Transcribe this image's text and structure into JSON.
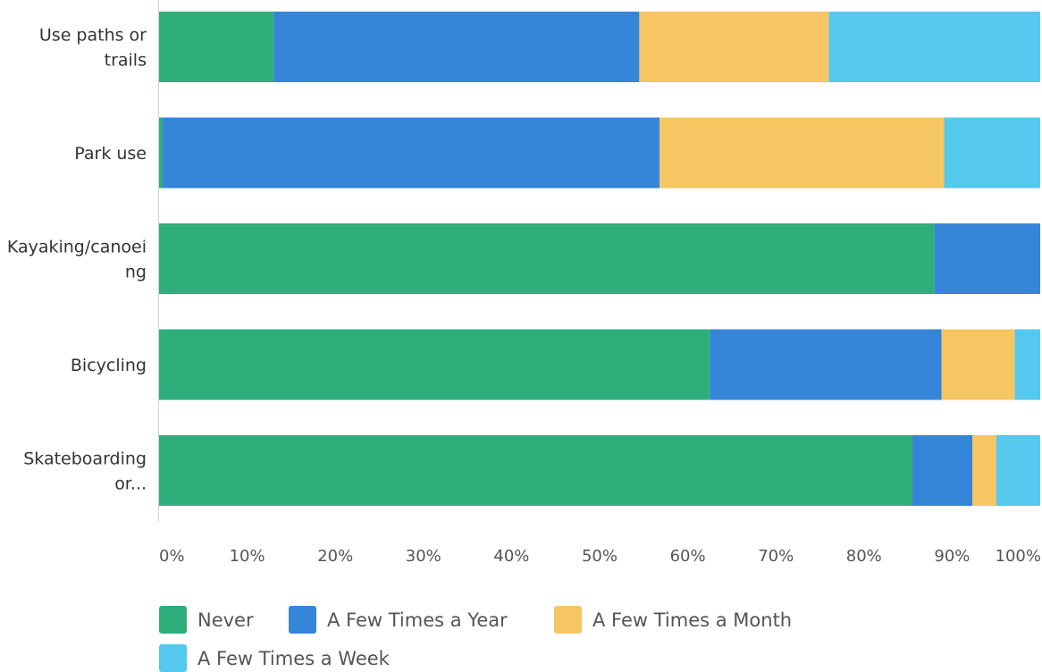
{
  "chart_data": {
    "type": "bar",
    "orientation": "horizontal",
    "stacked": true,
    "categories": [
      [
        "Use paths or",
        "trails"
      ],
      [
        "Park use"
      ],
      [
        "Kayaking/canoei",
        "ng"
      ],
      [
        "Bicycling"
      ],
      [
        "Skateboarding",
        "or..."
      ]
    ],
    "series": [
      {
        "name": "Never",
        "color": "#2EAE7B",
        "values": [
          13,
          0.4,
          88,
          62.5,
          85.5
        ]
      },
      {
        "name": "A Few Times a Year",
        "color": "#3585D9",
        "values": [
          41.5,
          56.4,
          12,
          26.3,
          6.8
        ]
      },
      {
        "name": "A Few Times a Month",
        "color": "#F6C663",
        "values": [
          21.5,
          32.3,
          0,
          8.3,
          2.7
        ]
      },
      {
        "name": "A Few Times a Week",
        "color": "#55C8EE",
        "values": [
          24,
          10.9,
          0,
          2.9,
          5
        ]
      }
    ],
    "x_ticks": [
      "0%",
      "10%",
      "20%",
      "30%",
      "40%",
      "50%",
      "60%",
      "70%",
      "80%",
      "90%",
      "100%"
    ],
    "xlim": [
      0,
      100
    ],
    "xlabel": "",
    "ylabel": "",
    "grid": false,
    "legend_position": "bottom"
  }
}
